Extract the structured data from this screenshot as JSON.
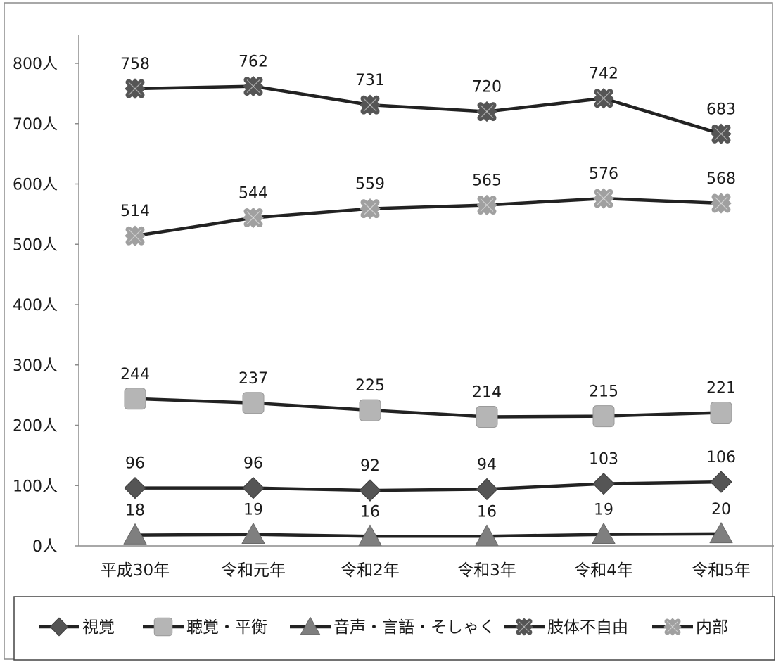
{
  "chart_data": {
    "type": "line",
    "categories": [
      "平成30年",
      "令和元年",
      "令和2年",
      "令和3年",
      "令和4年",
      "令和5年"
    ],
    "y_ticks": [
      "0人",
      "100人",
      "200人",
      "300人",
      "400人",
      "500人",
      "600人",
      "700人",
      "800人"
    ],
    "ylim": [
      0,
      800
    ],
    "grid": false,
    "legend_position": "bottom",
    "series": [
      {
        "name": "視覚",
        "values": [
          96,
          96,
          92,
          94,
          103,
          106
        ],
        "marker": "diamond",
        "color": "#555555"
      },
      {
        "name": "聴覚・平衡",
        "values": [
          244,
          237,
          225,
          214,
          215,
          221
        ],
        "marker": "square",
        "color": "#b5b5b5"
      },
      {
        "name": "音声・言語・そしゃく",
        "values": [
          18,
          19,
          16,
          16,
          19,
          20
        ],
        "marker": "triangle",
        "color": "#7f7f7f"
      },
      {
        "name": "肢体不自由",
        "values": [
          758,
          762,
          731,
          720,
          742,
          683
        ],
        "marker": "x-diamond",
        "color": "#555555"
      },
      {
        "name": "内部",
        "values": [
          514,
          544,
          559,
          565,
          576,
          568
        ],
        "marker": "x-diamond",
        "color": "#a0a0a0"
      }
    ],
    "line_color": "#222222"
  }
}
